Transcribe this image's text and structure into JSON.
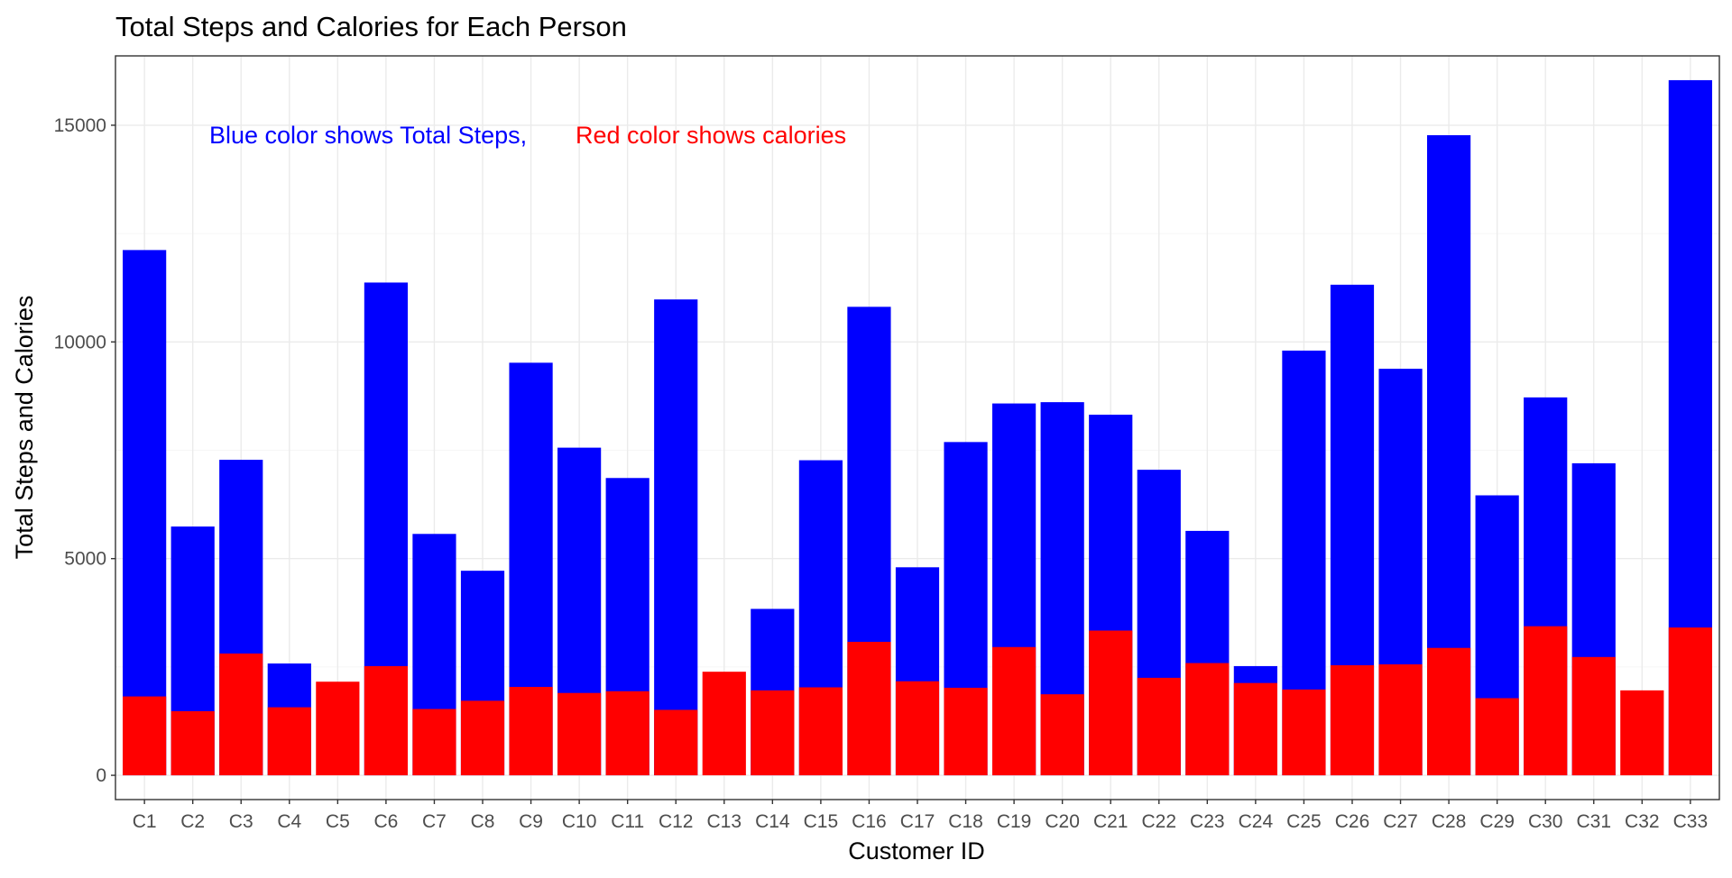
{
  "chart_data": {
    "type": "bar",
    "title": "Total Steps and Calories for Each Person",
    "xlabel": "Customer ID",
    "ylabel": "Total Steps and Calories",
    "ylim": [
      -560,
      16600
    ],
    "yticks": [
      0,
      5000,
      10000,
      15000
    ],
    "yticks_minor": [
      2500,
      7500,
      12500
    ],
    "grid": true,
    "categories": [
      "C1",
      "C2",
      "C3",
      "C4",
      "C5",
      "C6",
      "C7",
      "C8",
      "C9",
      "C10",
      "C11",
      "C12",
      "C13",
      "C14",
      "C15",
      "C16",
      "C17",
      "C18",
      "C19",
      "C20",
      "C21",
      "C22",
      "C23",
      "C24",
      "C25",
      "C26",
      "C27",
      "C28",
      "C29",
      "C30",
      "C31",
      "C32",
      "C33"
    ],
    "series": [
      {
        "color": "#0000ff",
        "values": [
          12120,
          5740,
          7280,
          2580,
          0,
          11370,
          5570,
          4720,
          9520,
          7560,
          6860,
          10980,
          0,
          3840,
          7270,
          10810,
          4800,
          7690,
          8580,
          8610,
          8320,
          7050,
          5640,
          2520,
          9800,
          11320,
          9380,
          14770,
          6460,
          8720,
          7200,
          0,
          16040
        ]
      },
      {
        "color": "#ff0000",
        "values": [
          1820,
          1480,
          2810,
          1570,
          2160,
          2520,
          1530,
          1720,
          2040,
          1900,
          1940,
          1510,
          2390,
          1960,
          2030,
          3080,
          2170,
          2020,
          2960,
          1870,
          3340,
          2250,
          2590,
          2130,
          1980,
          2540,
          2560,
          2940,
          1780,
          3440,
          2730,
          1960,
          3410
        ]
      }
    ],
    "annotations": [
      {
        "text": "Blue color shows Total Steps,",
        "color": "#0000ff"
      },
      {
        "text": "Red color shows calories",
        "color": "#ff0000"
      }
    ]
  }
}
